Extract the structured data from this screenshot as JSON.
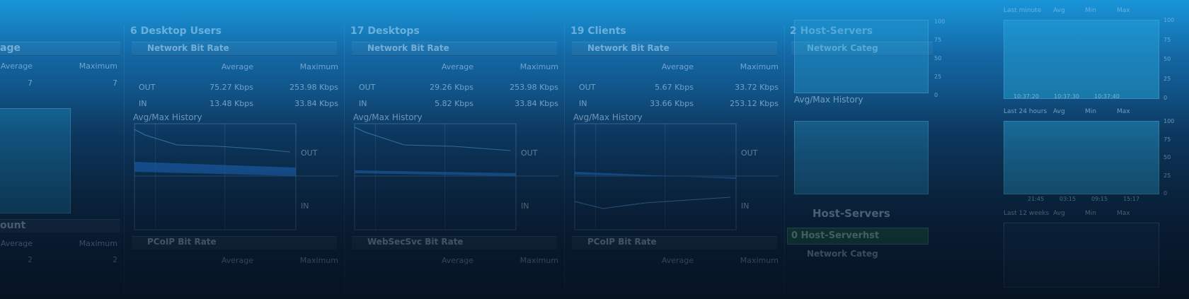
{
  "left_panel": {
    "section1": "age",
    "columns1": [
      "Average",
      "Maximum"
    ],
    "row1": [
      "7",
      "7"
    ],
    "section2": "ount",
    "columns2": [
      "Average",
      "Maximum"
    ],
    "row2": [
      "2",
      "2"
    ]
  },
  "panels": [
    {
      "title": "6 Desktop Users",
      "section": "Network Bit Rate",
      "columns": [
        "Average",
        "Maximum"
      ],
      "rows": [
        [
          "OUT",
          "75.27 Kbps",
          "253.98 Kbps"
        ],
        [
          "IN",
          "13.48 Kbps",
          "33.84 Kbps"
        ]
      ],
      "history": "Avg/Max History",
      "out_label": "OUT",
      "in_label": "IN",
      "section2": "PCoIP Bit Rate",
      "columns2": [
        "Average",
        "Maximum"
      ]
    },
    {
      "title": "17 Desktops",
      "section": "Network Bit Rate",
      "columns": [
        "Average",
        "Maximum"
      ],
      "rows": [
        [
          "OUT",
          "29.26 Kbps",
          "253.98 Kbps"
        ],
        [
          "IN",
          "5.82 Kbps",
          "33.84 Kbps"
        ]
      ],
      "history": "Avg/Max History",
      "out_label": "OUT",
      "in_label": "IN",
      "section2": "WebSecSvc Bit Rate",
      "columns2": [
        "Average",
        "Maximum"
      ]
    },
    {
      "title": "19 Clients",
      "section": "Network Bit Rate",
      "columns": [
        "Average",
        "Maximum"
      ],
      "rows": [
        [
          "OUT",
          "5.67 Kbps",
          "33.72 Kbps"
        ],
        [
          "IN",
          "33.66 Kbps",
          "253.12 Kbps"
        ]
      ],
      "history": "Avg/Max History",
      "out_label": "OUT",
      "in_label": "IN",
      "section2": "PCoIP Bit Rate",
      "columns2": [
        "Average",
        "Maximum"
      ]
    }
  ],
  "host_panel": {
    "title": "2 Host-Servers",
    "section": "Network Categ",
    "history": "Avg/Max History",
    "group": "Host-Servers",
    "sub": "0 Host-Serverhst",
    "section2": "Network Categ"
  },
  "stats": {
    "periods": [
      "Last minute",
      "Last 24 hours",
      "Last 12 weeks"
    ],
    "avg": "Avg",
    "min": "Min",
    "max": "Max",
    "times1": [
      "10:37:20",
      "10:37:30",
      "10:37:40"
    ],
    "times2": [
      "21:45",
      "03:15",
      "09:15",
      "15:17"
    ],
    "axis": [
      "100",
      "75",
      "50",
      "25",
      "0"
    ]
  }
}
